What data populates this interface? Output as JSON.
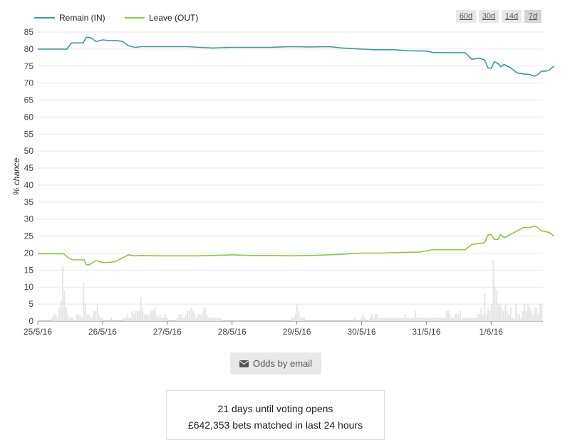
{
  "range_buttons": [
    "60d",
    "30d",
    "14d",
    "7d"
  ],
  "active_range": "7d",
  "email_button": {
    "label": "Odds by email",
    "icon": "envelope-icon"
  },
  "info": {
    "voting_line": "21 days until voting opens",
    "bets_line": "£642,353 bets matched in last 24 hours"
  },
  "chart_data": {
    "type": "line",
    "ylabel": "% chance",
    "ylim": [
      0,
      85
    ],
    "yticks": [
      0,
      5,
      10,
      15,
      20,
      25,
      30,
      35,
      40,
      45,
      50,
      55,
      60,
      65,
      70,
      75,
      80,
      85
    ],
    "xlim": [
      0,
      7.8
    ],
    "xticks": [
      {
        "at": 0,
        "label": "25/5/16"
      },
      {
        "at": 1,
        "label": "26/5/16"
      },
      {
        "at": 2,
        "label": "27/5/16"
      },
      {
        "at": 3,
        "label": "28/5/16"
      },
      {
        "at": 4,
        "label": "29/5/16"
      },
      {
        "at": 5,
        "label": "30/5/16"
      },
      {
        "at": 6,
        "label": "31/5/16"
      },
      {
        "at": 7,
        "label": "1/6/16"
      }
    ],
    "grid": true,
    "legend_position": "top-left",
    "series": [
      {
        "name": "Remain (IN)",
        "color": "#3a9a9c",
        "points": [
          [
            0,
            80
          ],
          [
            0.45,
            80
          ],
          [
            0.52,
            81.8
          ],
          [
            0.6,
            81.8
          ],
          [
            0.7,
            81.8
          ],
          [
            0.75,
            83.5
          ],
          [
            0.82,
            83.3
          ],
          [
            0.9,
            82.2
          ],
          [
            1.0,
            82.7
          ],
          [
            1.1,
            82.5
          ],
          [
            1.2,
            82.5
          ],
          [
            1.3,
            82.3
          ],
          [
            1.4,
            81
          ],
          [
            1.5,
            80.5
          ],
          [
            1.6,
            80.7
          ],
          [
            1.8,
            80.7
          ],
          [
            2.0,
            80.7
          ],
          [
            2.3,
            80.7
          ],
          [
            2.5,
            80.5
          ],
          [
            2.7,
            80.3
          ],
          [
            3.0,
            80.5
          ],
          [
            3.3,
            80.5
          ],
          [
            3.6,
            80.5
          ],
          [
            3.9,
            80.7
          ],
          [
            4.2,
            80.6
          ],
          [
            4.5,
            80.7
          ],
          [
            4.7,
            80.3
          ],
          [
            5.0,
            80
          ],
          [
            5.2,
            79.8
          ],
          [
            5.5,
            79.8
          ],
          [
            5.7,
            79.5
          ],
          [
            6.0,
            79.4
          ],
          [
            6.1,
            79
          ],
          [
            6.3,
            78.9
          ],
          [
            6.5,
            78.9
          ],
          [
            6.6,
            78.9
          ],
          [
            6.7,
            77
          ],
          [
            6.82,
            77.3
          ],
          [
            6.9,
            76.8
          ],
          [
            6.95,
            74.5
          ],
          [
            7.0,
            74.3
          ],
          [
            7.05,
            76.3
          ],
          [
            7.1,
            75.8
          ],
          [
            7.15,
            74.8
          ],
          [
            7.2,
            75.5
          ],
          [
            7.3,
            74.5
          ],
          [
            7.4,
            73
          ],
          [
            7.5,
            72.7
          ],
          [
            7.6,
            72.5
          ],
          [
            7.67,
            72
          ],
          [
            7.72,
            72.5
          ],
          [
            7.78,
            73.5
          ],
          [
            7.85,
            73.5
          ],
          [
            7.9,
            73.8
          ],
          [
            7.97,
            75
          ]
        ]
      },
      {
        "name": "Leave (OUT)",
        "color": "#8cc63e",
        "points": [
          [
            0,
            19.8
          ],
          [
            0.4,
            19.8
          ],
          [
            0.48,
            18.5
          ],
          [
            0.55,
            18
          ],
          [
            0.72,
            18
          ],
          [
            0.75,
            16.5
          ],
          [
            0.8,
            16.6
          ],
          [
            0.9,
            17.8
          ],
          [
            1.0,
            17.2
          ],
          [
            1.1,
            17.3
          ],
          [
            1.2,
            17.5
          ],
          [
            1.3,
            18.5
          ],
          [
            1.4,
            19.5
          ],
          [
            1.5,
            19.2
          ],
          [
            1.6,
            19.3
          ],
          [
            1.8,
            19.2
          ],
          [
            2.0,
            19.2
          ],
          [
            2.5,
            19.2
          ],
          [
            2.7,
            19.3
          ],
          [
            3.0,
            19.5
          ],
          [
            3.3,
            19.3
          ],
          [
            3.6,
            19.3
          ],
          [
            3.9,
            19.2
          ],
          [
            4.2,
            19.3
          ],
          [
            4.5,
            19.5
          ],
          [
            4.8,
            19.8
          ],
          [
            5.0,
            20
          ],
          [
            5.3,
            20
          ],
          [
            5.6,
            20.2
          ],
          [
            5.9,
            20.3
          ],
          [
            6.1,
            21
          ],
          [
            6.3,
            21
          ],
          [
            6.6,
            21
          ],
          [
            6.7,
            22.5
          ],
          [
            6.8,
            22.8
          ],
          [
            6.9,
            23
          ],
          [
            6.95,
            25.3
          ],
          [
            7.0,
            25.5
          ],
          [
            7.05,
            24
          ],
          [
            7.1,
            24
          ],
          [
            7.15,
            25.5
          ],
          [
            7.2,
            24.5
          ],
          [
            7.3,
            25.5
          ],
          [
            7.4,
            26.5
          ],
          [
            7.5,
            27.5
          ],
          [
            7.6,
            27.5
          ],
          [
            7.67,
            28
          ],
          [
            7.72,
            27.5
          ],
          [
            7.78,
            26.5
          ],
          [
            7.85,
            26.3
          ],
          [
            7.9,
            26
          ],
          [
            7.97,
            25
          ]
        ]
      }
    ],
    "volume_bars": {
      "color": "#e5e5e5",
      "values": [
        0,
        0,
        0,
        0,
        0,
        0,
        0,
        0,
        1,
        2,
        2,
        1,
        4,
        6,
        16,
        9,
        4,
        2,
        1,
        1,
        1,
        0,
        2,
        2,
        2,
        1,
        11,
        5,
        2,
        2,
        1,
        1,
        3,
        3,
        5,
        2,
        1,
        1,
        0,
        0,
        0,
        0,
        1,
        0,
        0,
        0,
        0,
        0,
        0,
        1,
        1,
        2,
        1,
        1,
        3,
        2,
        3,
        3,
        3,
        7,
        4,
        2,
        2,
        2,
        2,
        3,
        3,
        4,
        2,
        1,
        2,
        1,
        1,
        2,
        1,
        0,
        0,
        0,
        0,
        0,
        1,
        2,
        2,
        1,
        1,
        2,
        3,
        3,
        4,
        3,
        2,
        1,
        2,
        2,
        2,
        3,
        4,
        2,
        1,
        1,
        1,
        1,
        1,
        1,
        1,
        1,
        0,
        0,
        0,
        0,
        0,
        0,
        0,
        0,
        0,
        0,
        0,
        0,
        0,
        0,
        0,
        0,
        0,
        0,
        0,
        0,
        0,
        0,
        0,
        0,
        0,
        0,
        0,
        0,
        0,
        0,
        0,
        0,
        0,
        0,
        0,
        0,
        0,
        0,
        0,
        0,
        1,
        1,
        2,
        5,
        3,
        1,
        1,
        1,
        0,
        0,
        0,
        0,
        0,
        0,
        0,
        0,
        0,
        0,
        0,
        0,
        0,
        0,
        0,
        0,
        0,
        0,
        0,
        0,
        0,
        0,
        0,
        0,
        0,
        0,
        0,
        0,
        1,
        0,
        0,
        0,
        1,
        2,
        1,
        0,
        0,
        1,
        2,
        1,
        2,
        2,
        1,
        1,
        1,
        1,
        1,
        1,
        1,
        1,
        1,
        1,
        1,
        1,
        1,
        1,
        1,
        2,
        1,
        1,
        1,
        1,
        1,
        3,
        1,
        1,
        1,
        1,
        1,
        1,
        1,
        1,
        1,
        1,
        1,
        1,
        1,
        1,
        1,
        1,
        1,
        3,
        3,
        2,
        1,
        1,
        2,
        2,
        2,
        3,
        1,
        1,
        1,
        1,
        1,
        1,
        1,
        1,
        1,
        2,
        2,
        4,
        2,
        8,
        2,
        4,
        3,
        5,
        18,
        10,
        9,
        5,
        5,
        4,
        3,
        5,
        3,
        2,
        4,
        1,
        1,
        5,
        2,
        2,
        1,
        3,
        5,
        3,
        5,
        4,
        3,
        2,
        4,
        4,
        2,
        5,
        5
      ]
    }
  }
}
